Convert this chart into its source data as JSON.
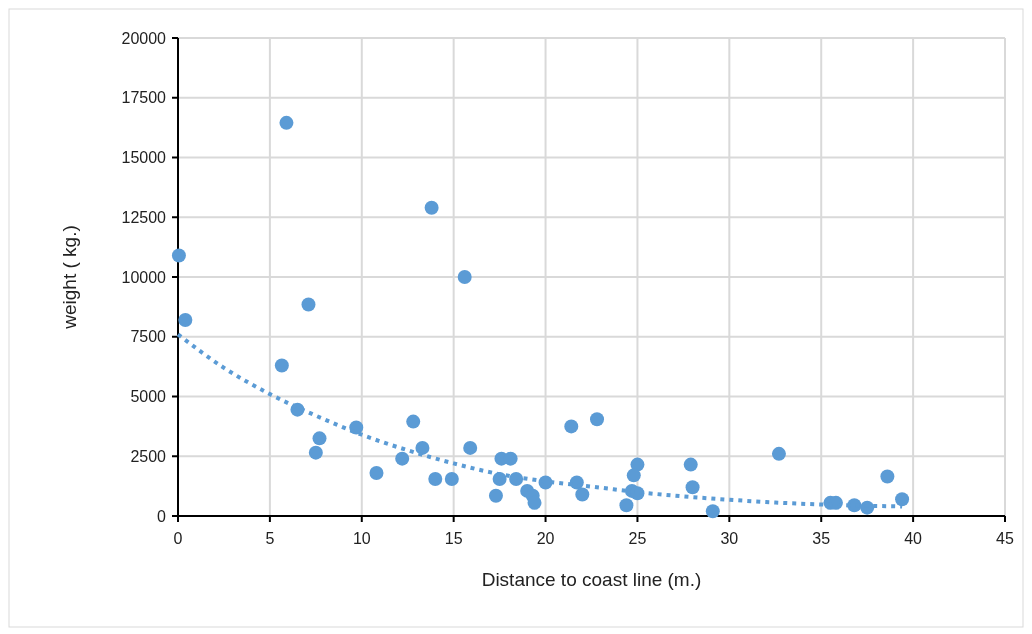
{
  "chart_data": {
    "type": "scatter",
    "xlabel": "Distance to coast line (m.)",
    "ylabel": "weight ( kg.)",
    "xlim": [
      0,
      45
    ],
    "ylim": [
      0,
      20000
    ],
    "xticks": [
      0,
      5,
      10,
      15,
      20,
      25,
      30,
      35,
      40,
      45
    ],
    "yticks": [
      0,
      2500,
      5000,
      7500,
      10000,
      12500,
      15000,
      17500,
      20000
    ],
    "grid": true,
    "marker": "circle",
    "series": [
      {
        "color": "#5b9bd5",
        "x": [
          0.05,
          0.4,
          5.9,
          5.65,
          7.1,
          6.5,
          7.5,
          7.7,
          9.7,
          10.8,
          12.2,
          12.8,
          13.3,
          13.8,
          14.0,
          14.9,
          15.6,
          15.9,
          17.6,
          18.1,
          17.5,
          18.4,
          19.0,
          19.3,
          19.4,
          20.0,
          17.3,
          21.4,
          22.8,
          21.7,
          22.0,
          25.0,
          24.8,
          24.7,
          25.0,
          24.4,
          27.9,
          28.0,
          29.1,
          32.7,
          35.5,
          35.8,
          36.8,
          37.5,
          38.6,
          39.4
        ],
        "values": [
          10900,
          8200,
          16450,
          6300,
          8850,
          4450,
          2650,
          3250,
          3700,
          1800,
          2400,
          3950,
          2850,
          12900,
          1550,
          1550,
          10000,
          2850,
          2400,
          2400,
          1550,
          1550,
          1050,
          850,
          550,
          1400,
          850,
          3750,
          4050,
          1400,
          900,
          2150,
          1700,
          1050,
          950,
          450,
          2150,
          1200,
          200,
          2600,
          550,
          550,
          450,
          350,
          1650,
          700
        ]
      },
      {
        "type": "line",
        "line_style": "dotted",
        "marker": "none",
        "color": "#5b9bd5",
        "x": [
          0,
          2.5,
          5,
          7.5,
          10,
          12.5,
          15,
          17.5,
          20,
          22.5,
          25,
          30,
          35,
          39.4
        ],
        "values": [
          7600,
          6200,
          5100,
          4200,
          3400,
          2750,
          2200,
          1750,
          1450,
          1230,
          1000,
          680,
          480,
          400
        ]
      }
    ]
  }
}
